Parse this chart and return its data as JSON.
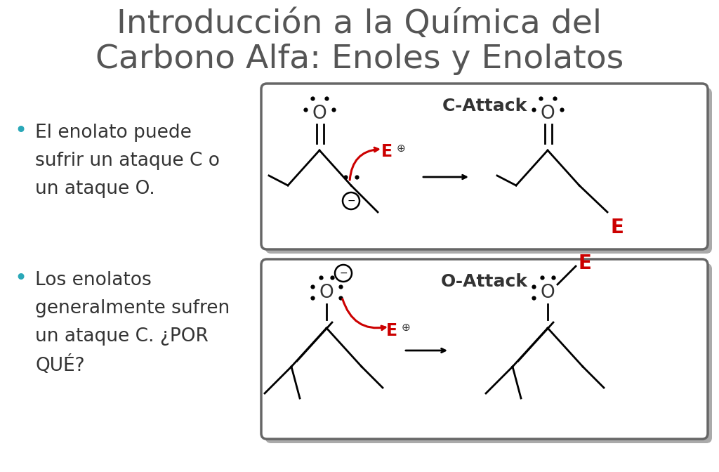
{
  "title_line1": "Introducción a la Química del",
  "title_line2": "Carbono Alfa: Enoles y Enolatos",
  "title_fontsize": 34,
  "title_color": "#555555",
  "bg_color": "#ffffff",
  "bullet_color": "#2aa8b8",
  "bullet1_lines": [
    "El enolato puede",
    "sufrir un ataque C o",
    "un ataque O."
  ],
  "bullet2_lines": [
    "Los enolatos",
    "generalmente sufren",
    "un ataque C. ¿POR",
    "QUÉ?"
  ],
  "box1_title": "C-Attack",
  "box2_title": "O-Attack",
  "red_color": "#cc0000",
  "black_color": "#333333",
  "box_bg": "#ffffff",
  "text_fontsize": 19,
  "label_fontsize": 22
}
